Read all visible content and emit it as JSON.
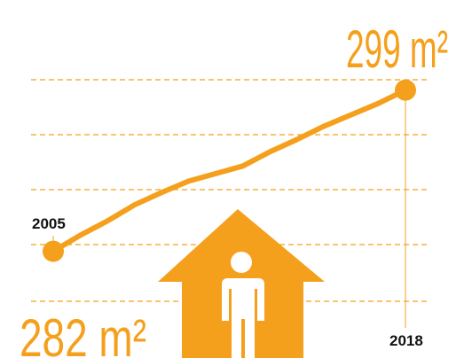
{
  "chart_data": {
    "type": "line",
    "categories": [
      "2005",
      null,
      null,
      null,
      null,
      null,
      null,
      null,
      null,
      null,
      null,
      null,
      null,
      "2018"
    ],
    "series": [
      {
        "color": "#f5a01c",
        "values": [
          282,
          283.7,
          285.2,
          286.9,
          288.2,
          289.4,
          290.2,
          291.0,
          292.5,
          293.8,
          295.2,
          296.4,
          297.6,
          299
        ],
        "value_labels": [
          "282 m²",
          null,
          null,
          null,
          null,
          null,
          null,
          null,
          null,
          null,
          null,
          null,
          null,
          "299 m²"
        ]
      }
    ],
    "ylim": [
      270,
      310
    ]
  }
}
